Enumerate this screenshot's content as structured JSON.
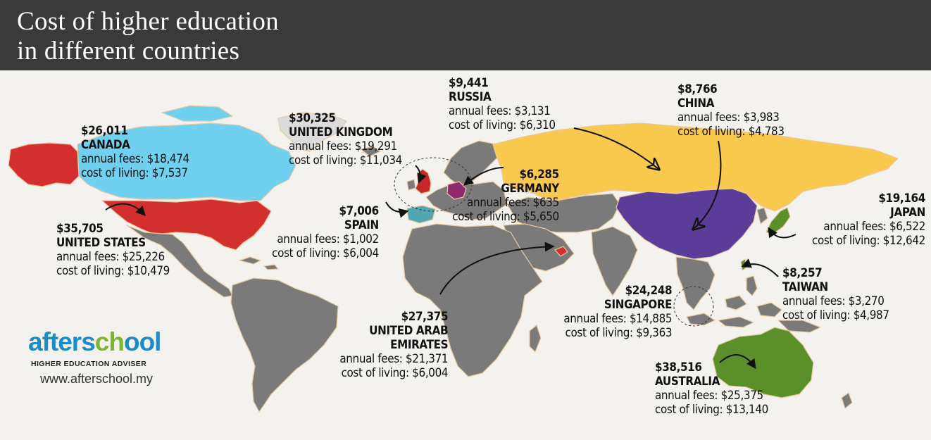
{
  "title_line1": "Cost of higher education",
  "title_line2": "in different countries",
  "countries": [
    {
      "id": "canada",
      "total": "$26,011",
      "name": "CANADA",
      "fees": "annual fees: $18,474",
      "living": "cost of living: $7,537",
      "color": "#6fd0f0"
    },
    {
      "id": "usa",
      "total": "$35,705",
      "name": "UNITED STATES",
      "fees": "annual fees: $25,226",
      "living": "cost of living: $10,479",
      "color": "#d32f2f"
    },
    {
      "id": "uk",
      "total": "$30,325",
      "name": "UNITED KINGDOM",
      "fees": "annual fees: $19,291",
      "living": "cost of living: $11,034",
      "color": "#c62828"
    },
    {
      "id": "russia",
      "total": "$9,441",
      "name": "RUSSIA",
      "fees": "annual fees: $3,131",
      "living": "cost of living: $6,310",
      "color": "#f9c94e"
    },
    {
      "id": "china",
      "total": "$8,766",
      "name": "CHINA",
      "fees": "annual fees: $3,983",
      "living": "cost of living: $4,783",
      "color": "#5a3c99"
    },
    {
      "id": "germany",
      "total": "$6,285",
      "name": "GERMANY",
      "fees": "annual fees: $635",
      "living": "cost of living: $5,650",
      "color": "#8e2a6d"
    },
    {
      "id": "spain",
      "total": "$7,006",
      "name": "SPAIN",
      "fees": "annual fees: $1,002",
      "living": "cost of living: $6,004",
      "color": "#4fa8b0"
    },
    {
      "id": "japan",
      "total": "$19,164",
      "name": "JAPAN",
      "fees": "annual fees: $6,522",
      "living": "cost of living: $12,642",
      "color": "#5a8f2a"
    },
    {
      "id": "taiwan",
      "total": "$8,257",
      "name": "TAIWAN",
      "fees": "annual fees: $3,270",
      "living": "cost of living: $4,987",
      "color": "#5a8f2a"
    },
    {
      "id": "singapore",
      "total": "$24,248",
      "name": "SINGAPORE",
      "fees": "annual fees: $14,885",
      "living": "cost of living: $9,363",
      "color": "#777777"
    },
    {
      "id": "uae",
      "total": "$27,375",
      "name_line1": "UNITED ARAB",
      "name_line2": "EMIRATES",
      "fees": "annual fees: $21,371",
      "living": "cost of living: $6,004",
      "color": "#d32f2f"
    },
    {
      "id": "australia",
      "total": "$38,516",
      "name": "AUSTRALIA",
      "fees": "annual fees: $25,375",
      "living": "cost of living: $13,140",
      "color": "#5a8f2a"
    }
  ],
  "logo": {
    "word_a": "afters",
    "word_b": "ch",
    "word_c": "ool",
    "tagline": "HIGHER EDUCATION ADVISER",
    "url": "www.afterschool.my"
  },
  "colors": {
    "land": "#7a7a7a",
    "border": "#e8c9a0",
    "ocean": "#f4f2ef",
    "header": "#3a3a3a"
  }
}
